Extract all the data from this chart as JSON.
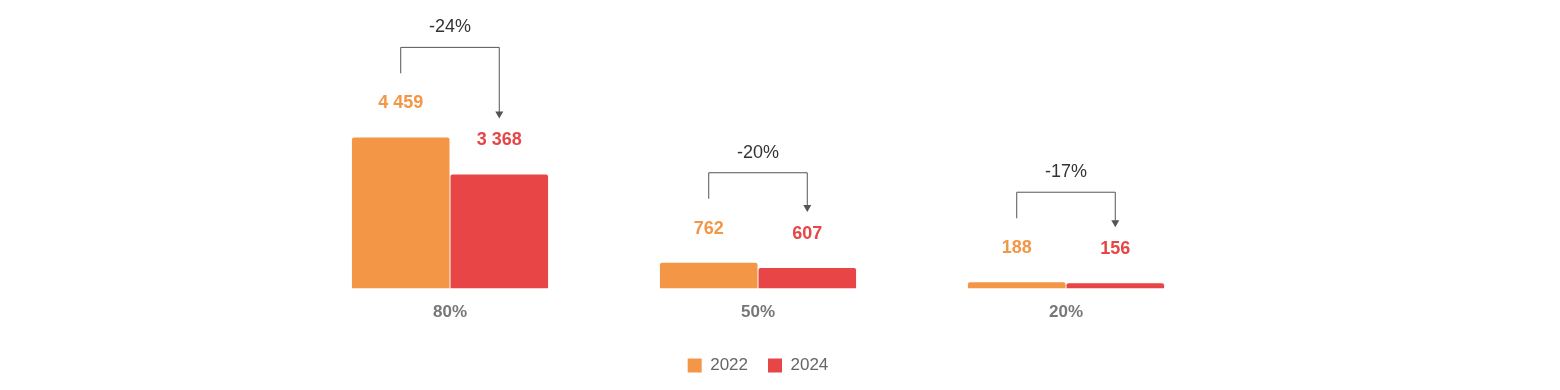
{
  "chart_data": {
    "type": "bar",
    "categories": [
      "80%",
      "50%",
      "20%"
    ],
    "series": [
      {
        "name": "2022",
        "color": "#f39646",
        "values": [
          4459,
          762,
          188
        ],
        "value_labels": [
          "4 459",
          "762",
          "188"
        ]
      },
      {
        "name": "2024",
        "color": "#e84646",
        "values": [
          3368,
          607,
          156
        ],
        "value_labels": [
          "3 368",
          "607",
          "156"
        ]
      }
    ],
    "annotations": [
      "-24%",
      "-20%",
      "-17%"
    ],
    "legend": "bottom",
    "grid": false,
    "tick_labels": "x"
  }
}
